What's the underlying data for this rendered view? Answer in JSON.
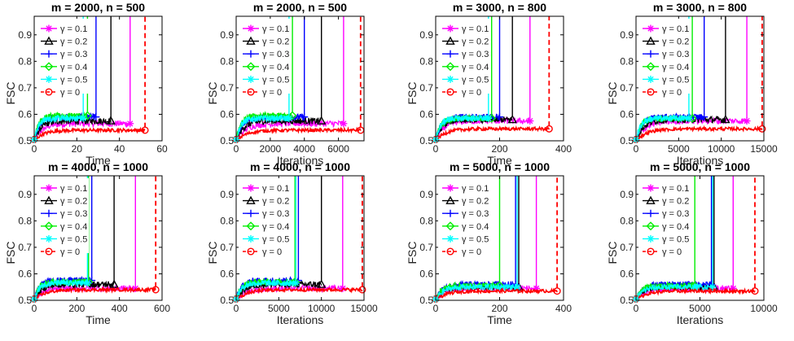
{
  "chart_data": [
    {
      "type": "line",
      "title": "m = 2000, n = 500",
      "xlabel": "Time",
      "ylabel": "FSC",
      "xlim": [
        0,
        60
      ],
      "ylim": [
        0.5,
        0.97
      ],
      "xticks": [
        "0",
        "20",
        "40",
        "60"
      ],
      "yticks": [
        "0.5",
        "0.6",
        "0.7",
        "0.8",
        "0.9"
      ],
      "series": [
        {
          "name": "γ = 0.1",
          "plateau": 0.565,
          "end": 45
        },
        {
          "name": "γ = 0.2",
          "plateau": 0.575,
          "end": 36
        },
        {
          "name": "γ = 0.3",
          "plateau": 0.59,
          "end": 29
        },
        {
          "name": "γ = 0.4",
          "plateau": 0.595,
          "end": 25
        },
        {
          "name": "γ = 0.5",
          "plateau": 0.585,
          "end": 23
        },
        {
          "name": "γ = 0",
          "plateau": 0.54,
          "end": 52
        }
      ]
    },
    {
      "type": "line",
      "title": "m = 2000, n = 500",
      "xlabel": "Iterations",
      "ylabel": "FSC",
      "xlim": [
        0,
        7500
      ],
      "ylim": [
        0.5,
        0.97
      ],
      "xticks": [
        "0",
        "2000",
        "4000",
        "6000"
      ],
      "yticks": [
        "0.5",
        "0.6",
        "0.7",
        "0.8",
        "0.9"
      ],
      "series": [
        {
          "name": "γ = 0.1",
          "plateau": 0.565,
          "end": 6300
        },
        {
          "name": "γ = 0.2",
          "plateau": 0.575,
          "end": 5000
        },
        {
          "name": "γ = 0.3",
          "plateau": 0.59,
          "end": 4000
        },
        {
          "name": "γ = 0.4",
          "plateau": 0.595,
          "end": 3300
        },
        {
          "name": "γ = 0.5",
          "plateau": 0.585,
          "end": 3100
        },
        {
          "name": "γ = 0",
          "plateau": 0.54,
          "end": 7300
        }
      ]
    },
    {
      "type": "line",
      "title": "m = 3000, n = 800",
      "xlabel": "Time",
      "ylabel": "FSC",
      "xlim": [
        0,
        400
      ],
      "ylim": [
        0.5,
        0.97
      ],
      "xticks": [
        "0",
        "200",
        "400"
      ],
      "yticks": [
        "0.5",
        "0.6",
        "0.7",
        "0.8",
        "0.9"
      ],
      "series": [
        {
          "name": "γ = 0.1",
          "plateau": 0.575,
          "end": 295
        },
        {
          "name": "γ = 0.2",
          "plateau": 0.58,
          "end": 240
        },
        {
          "name": "γ = 0.3",
          "plateau": 0.59,
          "end": 200
        },
        {
          "name": "γ = 0.4",
          "plateau": 0.585,
          "end": 175
        },
        {
          "name": "γ = 0.5",
          "plateau": 0.585,
          "end": 165
        },
        {
          "name": "γ = 0",
          "plateau": 0.545,
          "end": 355
        }
      ]
    },
    {
      "type": "line",
      "title": "m = 3000, n = 800",
      "xlabel": "Iterations",
      "ylabel": "FSC",
      "xlim": [
        0,
        15000
      ],
      "ylim": [
        0.5,
        0.97
      ],
      "xticks": [
        "0",
        "5000",
        "10000",
        "15000"
      ],
      "yticks": [
        "0.5",
        "0.6",
        "0.7",
        "0.8",
        "0.9"
      ],
      "series": [
        {
          "name": "γ = 0.1",
          "plateau": 0.575,
          "end": 13000
        },
        {
          "name": "γ = 0.2",
          "plateau": 0.58,
          "end": 10500
        },
        {
          "name": "γ = 0.3",
          "plateau": 0.59,
          "end": 8000
        },
        {
          "name": "γ = 0.4",
          "plateau": 0.585,
          "end": 6600
        },
        {
          "name": "γ = 0.5",
          "plateau": 0.585,
          "end": 6200
        },
        {
          "name": "γ = 0",
          "plateau": 0.545,
          "end": 14800
        }
      ]
    },
    {
      "type": "line",
      "title": "m = 4000, n = 1000",
      "xlabel": "Time",
      "ylabel": "FSC",
      "xlim": [
        0,
        600
      ],
      "ylim": [
        0.5,
        0.97
      ],
      "xticks": [
        "0",
        "200",
        "400",
        "600"
      ],
      "yticks": [
        "0.5",
        "0.6",
        "0.7",
        "0.8",
        "0.9"
      ],
      "series": [
        {
          "name": "γ = 0.1",
          "plateau": 0.545,
          "end": 475
        },
        {
          "name": "γ = 0.2",
          "plateau": 0.56,
          "end": 375
        },
        {
          "name": "γ = 0.3",
          "plateau": 0.575,
          "end": 270
        },
        {
          "name": "γ = 0.4",
          "plateau": 0.57,
          "end": 255
        },
        {
          "name": "γ = 0.5",
          "plateau": 0.565,
          "end": 250
        },
        {
          "name": "γ = 0",
          "plateau": 0.54,
          "end": 570
        }
      ]
    },
    {
      "type": "line",
      "title": "m = 4000, n = 1000",
      "xlabel": "Iterations",
      "ylabel": "FSC",
      "xlim": [
        0,
        15000
      ],
      "ylim": [
        0.5,
        0.97
      ],
      "xticks": [
        "0",
        "5000",
        "10000",
        "15000"
      ],
      "yticks": [
        "0.5",
        "0.6",
        "0.7",
        "0.8",
        "0.9"
      ],
      "series": [
        {
          "name": "γ = 0.1",
          "plateau": 0.545,
          "end": 12500
        },
        {
          "name": "γ = 0.2",
          "plateau": 0.56,
          "end": 10000
        },
        {
          "name": "γ = 0.3",
          "plateau": 0.575,
          "end": 7300
        },
        {
          "name": "γ = 0.4",
          "plateau": 0.57,
          "end": 6900
        },
        {
          "name": "γ = 0.5",
          "plateau": 0.565,
          "end": 7000
        },
        {
          "name": "γ = 0",
          "plateau": 0.54,
          "end": 14800
        }
      ]
    },
    {
      "type": "line",
      "title": "m = 5000, n = 1000",
      "xlabel": "Time",
      "ylabel": "FSC",
      "xlim": [
        0,
        400
      ],
      "ylim": [
        0.5,
        0.97
      ],
      "xticks": [
        "0",
        "200",
        "400"
      ],
      "yticks": [
        "0.5",
        "0.6",
        "0.7",
        "0.8",
        "0.9"
      ],
      "series": [
        {
          "name": "γ = 0.1",
          "plateau": 0.545,
          "end": 315
        },
        {
          "name": "γ = 0.2",
          "plateau": 0.55,
          "end": 260
        },
        {
          "name": "γ = 0.3",
          "plateau": 0.56,
          "end": 250
        },
        {
          "name": "γ = 0.4",
          "plateau": 0.555,
          "end": 200
        },
        {
          "name": "γ = 0.5",
          "plateau": 0.55,
          "end": 255
        },
        {
          "name": "γ = 0",
          "plateau": 0.535,
          "end": 380
        }
      ]
    },
    {
      "type": "line",
      "title": "m = 5000, n = 1000",
      "xlabel": "Iterations",
      "ylabel": "FSC",
      "xlim": [
        0,
        10000
      ],
      "ylim": [
        0.5,
        0.97
      ],
      "xticks": [
        "0",
        "5000",
        "10000"
      ],
      "yticks": [
        "0.5",
        "0.6",
        "0.7",
        "0.8",
        "0.9"
      ],
      "series": [
        {
          "name": "γ = 0.1",
          "plateau": 0.545,
          "end": 7600
        },
        {
          "name": "γ = 0.2",
          "plateau": 0.55,
          "end": 6100
        },
        {
          "name": "γ = 0.3",
          "plateau": 0.56,
          "end": 5900
        },
        {
          "name": "γ = 0.4",
          "plateau": 0.555,
          "end": 4600
        },
        {
          "name": "γ = 0.5",
          "plateau": 0.55,
          "end": 6000
        },
        {
          "name": "γ = 0",
          "plateau": 0.535,
          "end": 9300
        }
      ]
    }
  ],
  "styles": {
    "colors": [
      "#ff00ff",
      "#000000",
      "#0000ff",
      "#00ee00",
      "#00ffff",
      "#ff0000"
    ],
    "markers": [
      "asterisk",
      "triangle",
      "plus",
      "diamond",
      "asterisk",
      "circle"
    ]
  }
}
